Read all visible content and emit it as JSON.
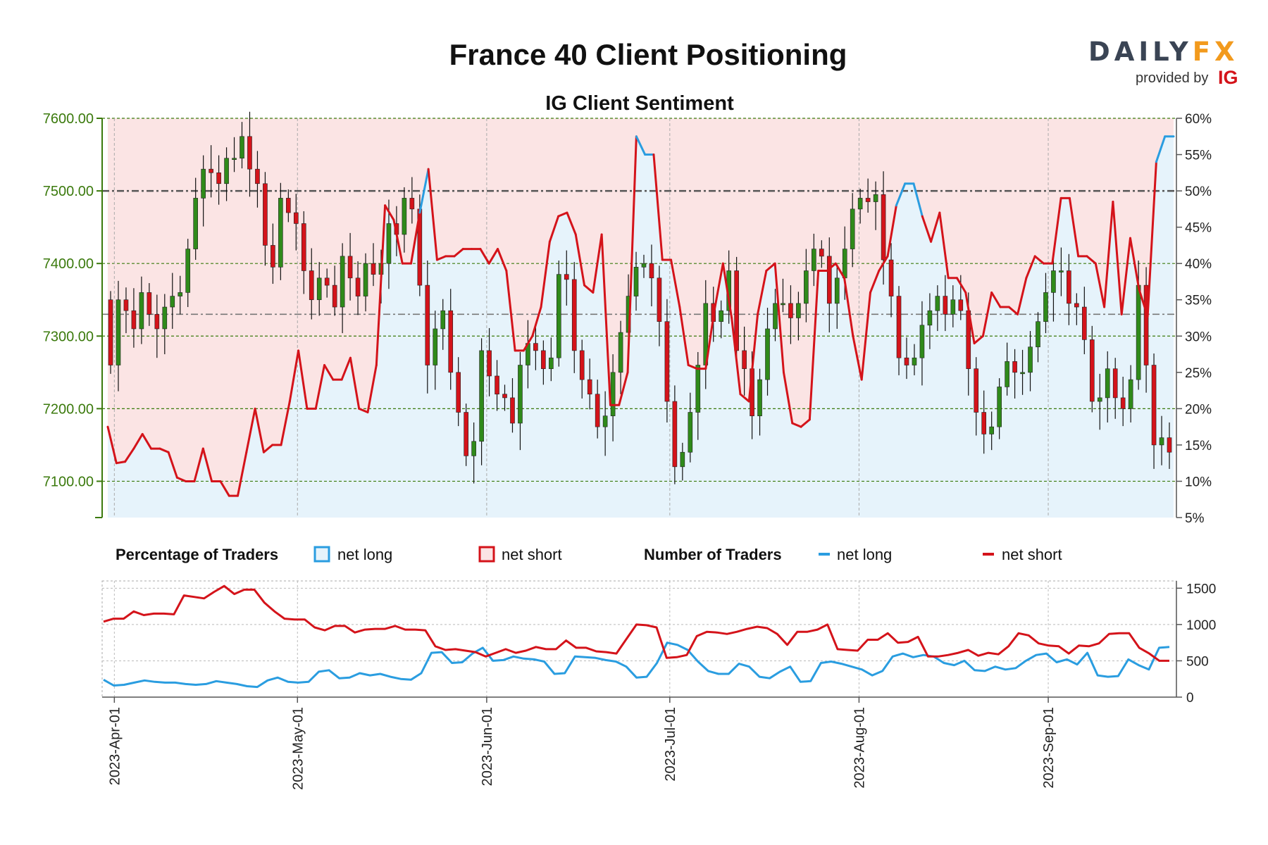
{
  "header": {
    "title": "France 40 Client Positioning",
    "subtitle": "IG Client Sentiment",
    "logo_text": "DAILYFX",
    "logo_provided": "provided by",
    "logo_ig": "IG"
  },
  "legend": {
    "pct_heading": "Percentage of Traders",
    "num_heading": "Number of Traders",
    "net_long": "net long",
    "net_short": "net short"
  },
  "colors": {
    "long": "#2a9de0",
    "short": "#d4131a",
    "bull_candle": "#2f8a1a",
    "bear_candle": "#d4131a",
    "long_fill": "#e6f3fb",
    "short_fill": "#fbe4e4",
    "left_axis": "#3b7a0d"
  },
  "chart_data": [
    {
      "type": "candlestick",
      "title": "IG Client Sentiment",
      "x_range": [
        "2023-03-30",
        "2023-09-22"
      ],
      "x_ticks": [
        "2023-Apr-01",
        "2023-May-01",
        "2023-Jun-01",
        "2023-Jul-01",
        "2023-Aug-01",
        "2023-Sep-01"
      ],
      "x_tick_dates": [
        "2023-04-01",
        "2023-05-01",
        "2023-06-01",
        "2023-07-01",
        "2023-08-01",
        "2023-09-01"
      ],
      "y_left_ticks": [
        "7600.00",
        "7500.00",
        "7400.00",
        "7300.00",
        "7200.00",
        "7100.00"
      ],
      "y_left_range": [
        7050,
        7600
      ],
      "y_right_ticks": [
        "60%",
        "55%",
        "50%",
        "45%",
        "40%",
        "35%",
        "30%",
        "25%",
        "20%",
        "15%",
        "10%",
        "5%"
      ],
      "y_right_range": [
        5,
        60
      ],
      "reference_lines": [
        7500,
        7330
      ],
      "price_close": [
        7260,
        7350,
        7335,
        7310,
        7360,
        7330,
        7310,
        7340,
        7355,
        7360,
        7420,
        7490,
        7530,
        7525,
        7510,
        7545,
        7545,
        7575,
        7530,
        7510,
        7425,
        7395,
        7490,
        7470,
        7455,
        7390,
        7350,
        7380,
        7370,
        7340,
        7410,
        7380,
        7355,
        7400,
        7385,
        7400,
        7455,
        7440,
        7490,
        7475,
        7370,
        7260,
        7310,
        7335,
        7250,
        7195,
        7135,
        7155,
        7280,
        7245,
        7220,
        7215,
        7180,
        7260,
        7290,
        7280,
        7255,
        7270,
        7385,
        7378,
        7280,
        7240,
        7220,
        7175,
        7190,
        7250,
        7305,
        7355,
        7395,
        7400,
        7380,
        7320,
        7210,
        7120,
        7140,
        7195,
        7260,
        7345,
        7320,
        7335,
        7390,
        7280,
        7255,
        7190,
        7240,
        7310,
        7345,
        7345,
        7325,
        7345,
        7390,
        7420,
        7410,
        7345,
        7380,
        7420,
        7475,
        7490,
        7485,
        7495,
        7405,
        7355,
        7270,
        7260,
        7270,
        7315,
        7335,
        7355,
        7330,
        7350,
        7335,
        7255,
        7195,
        7165,
        7175,
        7230,
        7265,
        7250,
        7250,
        7285,
        7320,
        7360,
        7390,
        7390,
        7345,
        7340,
        7295,
        7210,
        7215,
        7255,
        7215,
        7200,
        7240,
        7370,
        7260,
        7150,
        7160,
        7140
      ],
      "sentiment_pct_long": [
        17.5,
        12.5,
        12.7,
        14.5,
        16.5,
        14.5,
        14.5,
        14,
        10.5,
        10,
        10,
        14.5,
        10,
        10,
        8,
        8,
        14,
        20,
        14,
        15,
        15,
        21,
        28,
        20,
        20,
        26,
        24,
        24,
        27,
        20,
        19.5,
        26,
        48,
        46,
        40,
        40,
        47,
        53,
        40.5,
        41,
        41,
        42,
        42,
        42,
        40,
        42,
        39,
        28,
        28,
        30,
        34,
        43,
        46.5,
        47,
        44,
        37,
        36,
        44,
        20.5,
        20.5,
        25,
        57.5,
        55,
        55,
        40.5,
        40.5,
        34,
        26,
        25.5,
        25.5,
        33.5,
        40,
        32.5,
        22,
        21,
        33,
        39,
        40,
        25,
        18,
        17.5,
        18.5,
        39,
        39,
        40,
        38,
        30,
        24,
        36,
        39,
        41,
        48,
        51,
        51,
        46.5,
        43,
        47,
        38,
        38,
        36,
        29,
        30,
        36,
        34,
        34,
        33,
        38,
        41,
        40,
        40,
        49,
        49,
        41,
        41,
        40,
        34,
        48.5,
        33,
        43.5,
        36.5,
        32.7,
        54,
        57.5,
        57.5
      ]
    },
    {
      "type": "line",
      "title": "Number of Traders",
      "y_ticks": [
        "1500",
        "1000",
        "500",
        "0"
      ],
      "y_range": [
        0,
        1600
      ],
      "series": [
        {
          "name": "net long",
          "values": [
            240,
            160,
            170,
            200,
            230,
            210,
            200,
            200,
            180,
            170,
            180,
            220,
            200,
            180,
            150,
            140,
            230,
            270,
            210,
            200,
            210,
            350,
            370,
            260,
            270,
            330,
            300,
            320,
            280,
            250,
            240,
            330,
            610,
            620,
            470,
            480,
            600,
            680,
            500,
            510,
            560,
            530,
            520,
            490,
            320,
            330,
            560,
            550,
            540,
            510,
            490,
            420,
            270,
            280,
            470,
            750,
            720,
            650,
            490,
            360,
            320,
            320,
            460,
            420,
            280,
            260,
            350,
            420,
            210,
            220,
            470,
            490,
            460,
            420,
            380,
            300,
            360,
            560,
            600,
            550,
            580,
            560,
            470,
            440,
            500,
            370,
            360,
            420,
            380,
            400,
            500,
            580,
            600,
            480,
            520,
            450,
            610,
            300,
            280,
            290,
            520,
            440,
            380,
            680,
            690
          ]
        },
        {
          "name": "net short",
          "values": [
            1040,
            1080,
            1080,
            1180,
            1130,
            1150,
            1150,
            1140,
            1400,
            1380,
            1360,
            1450,
            1530,
            1420,
            1480,
            1480,
            1300,
            1180,
            1080,
            1070,
            1070,
            960,
            920,
            980,
            980,
            890,
            930,
            940,
            940,
            980,
            930,
            930,
            920,
            700,
            650,
            660,
            640,
            620,
            560,
            610,
            660,
            610,
            640,
            690,
            660,
            660,
            780,
            680,
            680,
            630,
            620,
            600,
            800,
            1000,
            990,
            960,
            540,
            550,
            580,
            840,
            900,
            890,
            870,
            900,
            940,
            970,
            950,
            870,
            720,
            900,
            900,
            930,
            1000,
            660,
            650,
            640,
            790,
            790,
            880,
            750,
            760,
            830,
            560,
            560,
            580,
            610,
            650,
            570,
            610,
            590,
            700,
            880,
            850,
            740,
            710,
            700,
            600,
            710,
            700,
            740,
            870,
            880,
            880,
            680,
            600,
            500,
            500
          ]
        }
      ]
    }
  ]
}
